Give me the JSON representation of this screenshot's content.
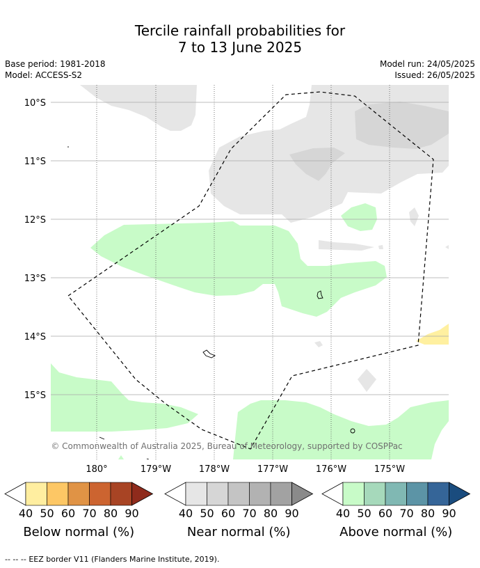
{
  "header": {
    "title_line1": "Tercile rainfall probabilities for",
    "title_line2": "7 to 13 June 2025",
    "base_period": "Base period: 1981-2018",
    "model": "Model: ACCESS-S2",
    "model_run": "Model run: 24/05/2025",
    "issued": "Issued: 26/05/2025"
  },
  "map": {
    "lat_labels": [
      "10°S",
      "11°S",
      "12°S",
      "13°S",
      "14°S",
      "15°S"
    ],
    "lon_labels": [
      "180°",
      "179°W",
      "178°W",
      "177°W",
      "176°W",
      "175°W"
    ],
    "copyright": "© Commonwealth of Australia 2025, Bureau of Meteorology, supported by COSPPac",
    "colors": {
      "near_normal_40": "#e6e6e6",
      "near_normal_50": "#d6d6d6",
      "above_normal_40": "#c8fbc8",
      "below_normal_40": "#fff0a0",
      "eez_line": "#000000"
    }
  },
  "colorbars": [
    {
      "title": "Below normal (%)",
      "ticks": [
        "40",
        "50",
        "60",
        "70",
        "80",
        "90"
      ],
      "colors": [
        "#ffeea0",
        "#fdc765",
        "#e09345",
        "#cc6430",
        "#a84424",
        "#8f2b1c"
      ]
    },
    {
      "title": "Near normal (%)",
      "ticks": [
        "40",
        "50",
        "60",
        "70",
        "80",
        "90"
      ],
      "colors": [
        "#e6e6e6",
        "#d6d6d6",
        "#c4c4c4",
        "#b2b2b2",
        "#a2a2a2",
        "#8a8a8a"
      ]
    },
    {
      "title": "Above normal (%)",
      "ticks": [
        "40",
        "50",
        "60",
        "70",
        "80",
        "90"
      ],
      "colors": [
        "#c8fbc8",
        "#a6d9bb",
        "#80b8b3",
        "#5c94a6",
        "#356598",
        "#1a4c7e"
      ]
    }
  ],
  "footer": {
    "legend_marker": "-- -- --",
    "legend_text": "EEZ border V11 (Flanders Marine Institute, 2019)."
  }
}
